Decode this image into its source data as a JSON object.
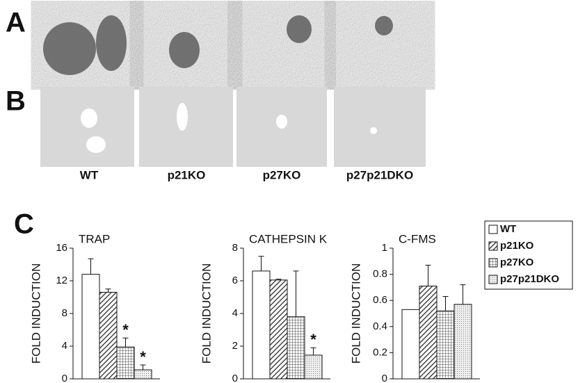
{
  "figure": {
    "panel_labels": [
      "A",
      "B",
      "C"
    ],
    "image_labels": [
      "WT",
      "p21KO",
      "p27KO",
      "p27p21DKO"
    ]
  },
  "legend": {
    "entries": [
      "WT",
      "p21KO",
      "p27KO",
      "p27p21DKO"
    ],
    "fills": [
      "white",
      "hatch",
      "grid",
      "dots"
    ],
    "location": "right"
  },
  "chart_data": [
    {
      "type": "bar",
      "title": "TRAP",
      "ylabel": "FOLD INDUCTION",
      "values": [
        12.8,
        10.6,
        3.9,
        1.1
      ],
      "errors": [
        1.9,
        0.4,
        1.1,
        0.6
      ],
      "significance": [
        null,
        null,
        "*",
        "*"
      ],
      "ylim": [
        0,
        16
      ],
      "yticks": [
        0,
        4,
        8,
        12,
        16
      ]
    },
    {
      "type": "bar",
      "title": "CATHEPSIN K",
      "ylabel": "FOLD INDUCTION",
      "values": [
        6.6,
        6.05,
        3.8,
        1.45
      ],
      "errors": [
        0.9,
        0.05,
        2.8,
        0.45
      ],
      "significance": [
        null,
        null,
        null,
        "*"
      ],
      "ylim": [
        0,
        8
      ],
      "yticks": [
        0,
        2,
        4,
        6,
        8
      ]
    },
    {
      "type": "bar",
      "title": "C-FMS",
      "ylabel": "FOLD INDUCTION",
      "values": [
        0.53,
        0.71,
        0.52,
        0.57
      ],
      "errors": [
        null,
        0.16,
        0.11,
        0.15
      ],
      "significance": [
        null,
        null,
        null,
        null
      ],
      "ylim": [
        0,
        1
      ],
      "yticks": [
        0,
        0.2,
        0.4,
        0.6,
        0.8,
        1
      ]
    }
  ]
}
